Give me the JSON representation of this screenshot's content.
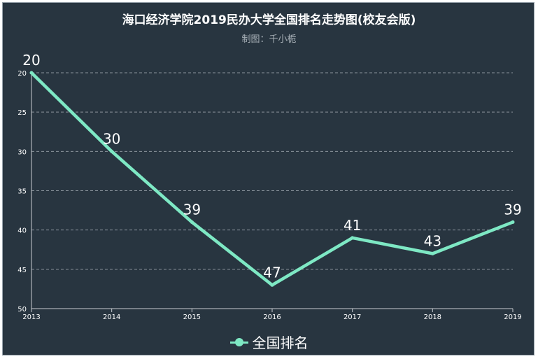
{
  "chart_data": {
    "type": "line",
    "title": "海口经济学院2019民办大学全国排名走势图(校友会版)",
    "subtitle": "制图：千小栀",
    "x": [
      "2013",
      "2014",
      "2015",
      "2016",
      "2017",
      "2018",
      "2019"
    ],
    "series": [
      {
        "name": "全国排名",
        "values": [
          20,
          30,
          39,
          47,
          41,
          43,
          39
        ],
        "color": "#7ee8c4"
      }
    ],
    "y_ticks": [
      "20",
      "25",
      "30",
      "35",
      "40",
      "45",
      "50"
    ],
    "ylim": [
      20,
      50
    ],
    "y_inverted": true,
    "grid": "horizontal-dashed",
    "legend_position": "bottom",
    "background": "#283540"
  }
}
